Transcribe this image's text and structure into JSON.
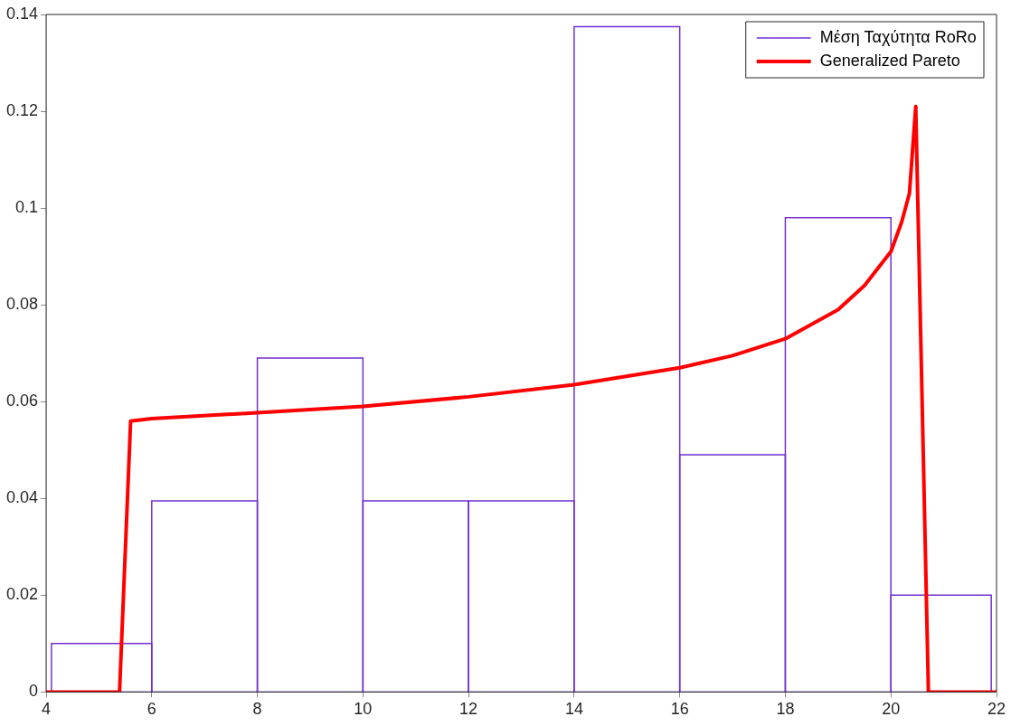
{
  "chart_data": {
    "type": "histogram",
    "xlim": [
      4,
      22
    ],
    "xticks": [
      4,
      6,
      8,
      10,
      12,
      14,
      16,
      18,
      20,
      22
    ],
    "ylim": [
      0,
      0.14
    ],
    "yticks": [
      0,
      0.02,
      0.04,
      0.06,
      0.08,
      0.1,
      0.12,
      0.14
    ],
    "grid": false,
    "legend": "top right",
    "marker": "none",
    "series": [
      {
        "name": "Μέση Ταχύτητα RoRo",
        "color": "#7030d0",
        "bins": [
          4.1,
          6,
          8,
          10,
          12,
          14,
          16,
          18,
          20,
          21.9
        ],
        "values": [
          0.01,
          0.0395,
          0.069,
          0.0395,
          0.0395,
          0.1375,
          0.049,
          0.098,
          0.02
        ]
      },
      {
        "name": "Generalized Pareto",
        "type": "line",
        "color": "#ff0000",
        "x": [
          4,
          5.39,
          5.6,
          6,
          8,
          10,
          12,
          14,
          16,
          17,
          18,
          19,
          19.5,
          20,
          20.2,
          20.35,
          20.47,
          20.71,
          22
        ],
        "values": [
          0,
          0,
          0.056,
          0.0565,
          0.0577,
          0.059,
          0.061,
          0.0635,
          0.067,
          0.0695,
          0.073,
          0.079,
          0.084,
          0.091,
          0.097,
          0.103,
          0.121,
          0,
          0
        ]
      }
    ]
  }
}
